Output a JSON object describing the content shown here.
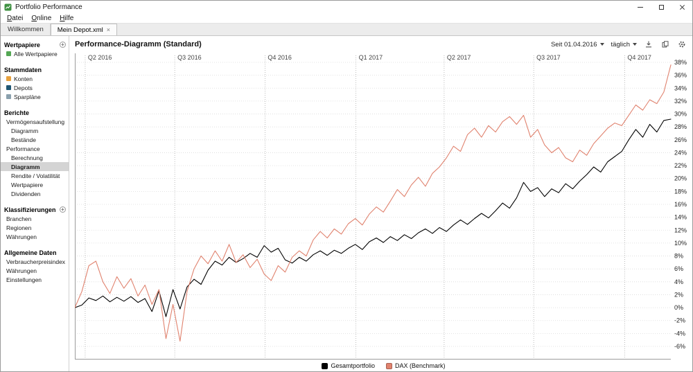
{
  "titlebar": {
    "title": "Portfolio Performance"
  },
  "menubar": {
    "items": [
      "Datei",
      "Online",
      "Hilfe"
    ]
  },
  "tabs": [
    {
      "label": "Willkommen",
      "active": false
    },
    {
      "label": "Mein Depot.xml",
      "active": true,
      "closable": true
    }
  ],
  "icons": {
    "add": "+",
    "tab_close": "×"
  },
  "sidebar": {
    "sections": [
      {
        "title": "Wertpapiere",
        "add_button": true,
        "items": [
          {
            "label": "Alle Wertpapiere",
            "indent": 1,
            "icon": "securities-icon",
            "icon_color": "#54a754"
          }
        ]
      },
      {
        "title": "Stammdaten",
        "add_button": false,
        "items": [
          {
            "label": "Konten",
            "indent": 1,
            "icon": "accounts-icon",
            "icon_color": "#e8a13d"
          },
          {
            "label": "Depots",
            "indent": 1,
            "icon": "portfolios-icon",
            "icon_color": "#1f5673"
          },
          {
            "label": "Sparpläne",
            "indent": 1,
            "icon": "savings-plans-icon",
            "icon_color": "#8aa0ad"
          }
        ]
      },
      {
        "title": "Berichte",
        "add_button": false,
        "items": [
          {
            "label": "Vermögensaufstellung",
            "indent": 1
          },
          {
            "label": "Diagramm",
            "indent": 2
          },
          {
            "label": "Bestände",
            "indent": 2
          },
          {
            "label": "Performance",
            "indent": 1
          },
          {
            "label": "Berechnung",
            "indent": 2
          },
          {
            "label": "Diagramm",
            "indent": 2,
            "selected": true
          },
          {
            "label": "Rendite / Volatilität",
            "indent": 2
          },
          {
            "label": "Wertpapiere",
            "indent": 2
          },
          {
            "label": "Dividenden",
            "indent": 2
          }
        ]
      },
      {
        "title": "Klassifizierungen",
        "add_button": true,
        "items": [
          {
            "label": "Branchen",
            "indent": 1
          },
          {
            "label": "Regionen",
            "indent": 1
          },
          {
            "label": "Währungen",
            "indent": 1
          }
        ]
      },
      {
        "title": "Allgemeine Daten",
        "add_button": false,
        "items": [
          {
            "label": "Verbraucherpreisindex",
            "indent": 1
          },
          {
            "label": "Währungen",
            "indent": 1
          },
          {
            "label": "Einstellungen",
            "indent": 1
          }
        ]
      }
    ]
  },
  "main": {
    "title": "Performance-Diagramm (Standard)",
    "toolbar": {
      "period_label": "Seit 01.04.2016",
      "interval_label": "täglich",
      "icon_buttons": [
        "download-icon",
        "copy-icon",
        "gear-icon"
      ]
    }
  },
  "chart_data": {
    "type": "line",
    "title": "Performance-Diagramm (Standard)",
    "x_unit": "weeks, 0 = 01.04.2016; series points evenly spaced over x_range",
    "x_range": [
      -1.5,
      85
    ],
    "x_gridlines": {
      "weeks": [
        0,
        13,
        26.1,
        39.3,
        52.1,
        65.1,
        78.3
      ],
      "labels": [
        "Q2 2016",
        "Q3 2016",
        "Q4 2016",
        "Q1 2017",
        "Q2 2017",
        "Q3 2017",
        "Q4 2017"
      ]
    },
    "ylim": [
      -6,
      38
    ],
    "y_tick_step": 2,
    "y_tick_suffix": "%",
    "grid": "dotted",
    "legend_position": "bottom-center",
    "series": [
      {
        "name": "Gesamtportfolio",
        "color": "#000000",
        "values": [
          0.0,
          0.4,
          1.5,
          1.1,
          1.8,
          0.9,
          1.6,
          1.0,
          1.7,
          0.8,
          1.4,
          -0.6,
          2.6,
          -1.4,
          2.8,
          -0.2,
          3.2,
          4.4,
          3.6,
          5.8,
          7.2,
          6.6,
          7.8,
          7.0,
          7.6,
          8.4,
          7.8,
          9.6,
          8.6,
          9.2,
          7.4,
          6.9,
          7.8,
          7.2,
          8.2,
          8.8,
          8.1,
          8.9,
          8.4,
          9.2,
          9.8,
          9.0,
          10.2,
          10.8,
          10.1,
          11.0,
          10.4,
          11.3,
          10.7,
          11.6,
          12.2,
          11.5,
          12.4,
          11.8,
          12.8,
          13.6,
          12.9,
          13.8,
          14.6,
          13.9,
          15.0,
          16.2,
          15.4,
          17.0,
          19.4,
          18.0,
          18.6,
          17.2,
          18.4,
          17.8,
          19.2,
          18.4,
          19.6,
          20.6,
          21.8,
          21.0,
          22.6,
          23.4,
          24.2,
          26.0,
          27.6,
          26.4,
          28.4,
          27.2,
          29.0,
          29.2
        ]
      },
      {
        "name": "DAX (Benchmark)",
        "color": "#e0826e",
        "values": [
          0.0,
          2.5,
          6.5,
          7.2,
          4.0,
          2.2,
          4.8,
          3.0,
          4.5,
          1.8,
          3.5,
          0.5,
          2.8,
          -4.8,
          0.5,
          -5.2,
          2.5,
          6.0,
          8.0,
          6.8,
          8.8,
          7.2,
          9.8,
          7.0,
          8.2,
          6.2,
          7.5,
          5.2,
          4.2,
          6.5,
          5.5,
          7.8,
          8.8,
          8.0,
          10.5,
          11.8,
          10.8,
          12.2,
          11.4,
          13.0,
          13.8,
          12.8,
          14.5,
          15.6,
          14.8,
          16.5,
          18.3,
          17.2,
          19.0,
          20.2,
          18.8,
          20.8,
          21.8,
          23.2,
          25.0,
          24.2,
          26.8,
          27.8,
          26.4,
          28.2,
          27.2,
          28.8,
          29.6,
          28.4,
          29.8,
          26.4,
          27.6,
          25.2,
          24.0,
          24.8,
          23.2,
          22.6,
          24.4,
          23.6,
          25.4,
          26.6,
          27.8,
          28.6,
          28.2,
          29.8,
          31.4,
          30.6,
          32.2,
          31.6,
          33.4,
          37.6
        ]
      }
    ]
  }
}
